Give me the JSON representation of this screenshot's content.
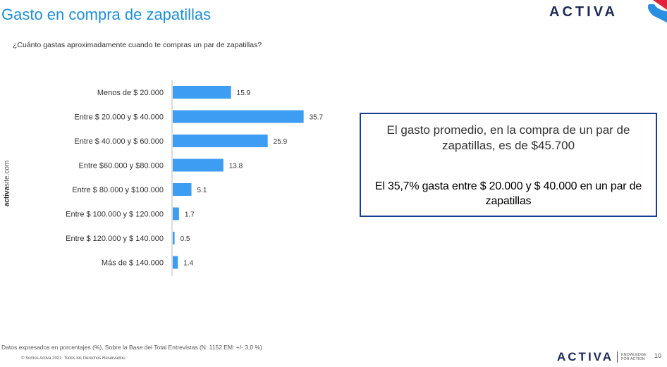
{
  "header": {
    "title": "Gasto en compra de zapatillas",
    "logo": "ACTIVA",
    "question": "¿Cuánto gastas aproximadamente cuando te compras un par de zapatillas?"
  },
  "side_brand": {
    "bold": "activa",
    "rest": "site.com"
  },
  "chart_data": {
    "type": "bar",
    "orientation": "horizontal",
    "categories": [
      "Menos de $ 20.000",
      "Entre $ 20.000 y $ 40.000",
      "Entre $ 40.000 y $ 60.000",
      "Entre $60.000 y $80.000",
      "Entre $ 80.000 y $100.000",
      "Entre $ 100.000 y $ 120.000",
      "Entre $ 120.000 y $ 140.000",
      "Más de $ 140.000"
    ],
    "values": [
      15.9,
      35.7,
      25.9,
      13.8,
      5.1,
      1.7,
      0.5,
      1.4
    ],
    "value_labels": [
      "15.9",
      "35.7",
      "25.9",
      "13.8",
      "5.1",
      "1.7",
      "0.5",
      "1.4"
    ],
    "title": "",
    "xlabel": "",
    "ylabel": "",
    "xlim": [
      0,
      40
    ],
    "grid": false,
    "bar_color": "#3d9df2"
  },
  "infobox": {
    "line1": "El gasto promedio, en la compra de un par de zapatillas, es de $45.700",
    "line2": "El 35,7% gasta entre $ 20.000 y $ 40.000 en un par de zapatillas"
  },
  "footer": {
    "footnote": "Datos expresados en porcentajes (%). Sobre la Base del Total Entrevistas (N: 1152  EM: +/- 3,0 %)",
    "copyright": "© Somos Activa 2021. Todos los Derechos Reservados.",
    "logo": "ACTIVA",
    "tagline1": "KNOWLEDGE",
    "tagline2": "FOR ACTION",
    "page_number": "10"
  },
  "colors": {
    "title": "#1f8fd6",
    "brand_dark": "#1b2a55",
    "box_border": "#1a3f8f",
    "corner_red": "#e0233a",
    "corner_blue": "#2a8fe0"
  }
}
